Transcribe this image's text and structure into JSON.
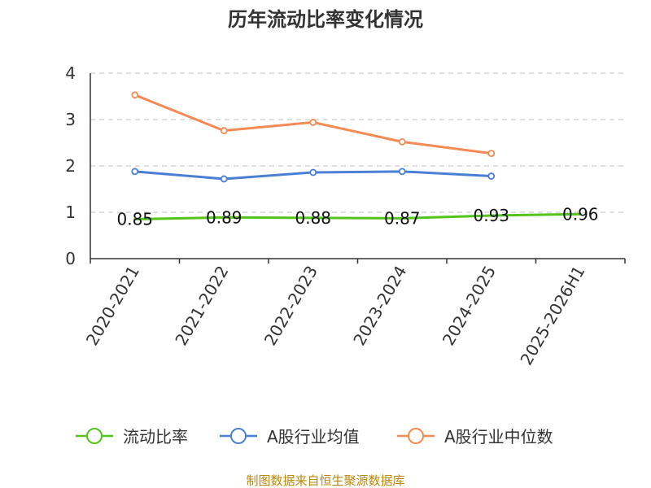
{
  "chart_data": {
    "type": "line",
    "title": "历年流动比率变化情况",
    "categories": [
      "2020-2021",
      "2021-2022",
      "2022-2023",
      "2023-2024",
      "2024-2025",
      "2025-2026H1"
    ],
    "ylim": [
      0,
      4
    ],
    "yticks": [
      0,
      1,
      2,
      3,
      4
    ],
    "grid": true,
    "legend_position": "bottom",
    "series": [
      {
        "name": "流动比率",
        "color": "#52c41a",
        "values": [
          0.85,
          0.89,
          0.88,
          0.87,
          0.93,
          0.96
        ],
        "show_labels": true,
        "labels": [
          "0.85",
          "0.89",
          "0.88",
          "0.87",
          "0.93",
          "0.96"
        ]
      },
      {
        "name": "A股行业均值",
        "color": "#4a7fd6",
        "values": [
          1.88,
          1.72,
          1.86,
          1.88,
          1.78,
          null
        ],
        "show_labels": false
      },
      {
        "name": "A股行业中位数",
        "color": "#f58a52",
        "values": [
          3.53,
          2.76,
          2.94,
          2.52,
          2.27,
          null
        ],
        "show_labels": false
      }
    ]
  },
  "source": "制图数据来自恒生聚源数据库"
}
